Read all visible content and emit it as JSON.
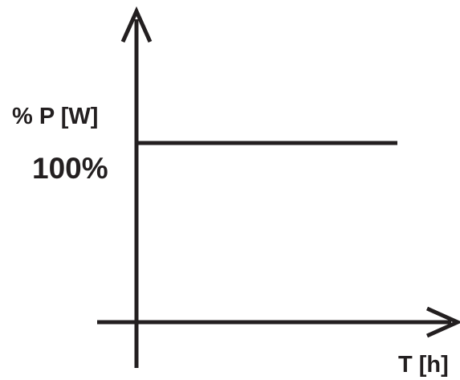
{
  "chart_data": {
    "type": "line",
    "title": "",
    "xlabel": "T [h]",
    "ylabel": "% P [W]",
    "y_tick_labels": [
      "100%"
    ],
    "series": [
      {
        "x": [
          0,
          1
        ],
        "y": [
          100,
          100
        ]
      }
    ],
    "xlim": [
      0,
      1
    ],
    "ylim": [
      0,
      100
    ],
    "grid": false,
    "line_color": "#231f20"
  }
}
